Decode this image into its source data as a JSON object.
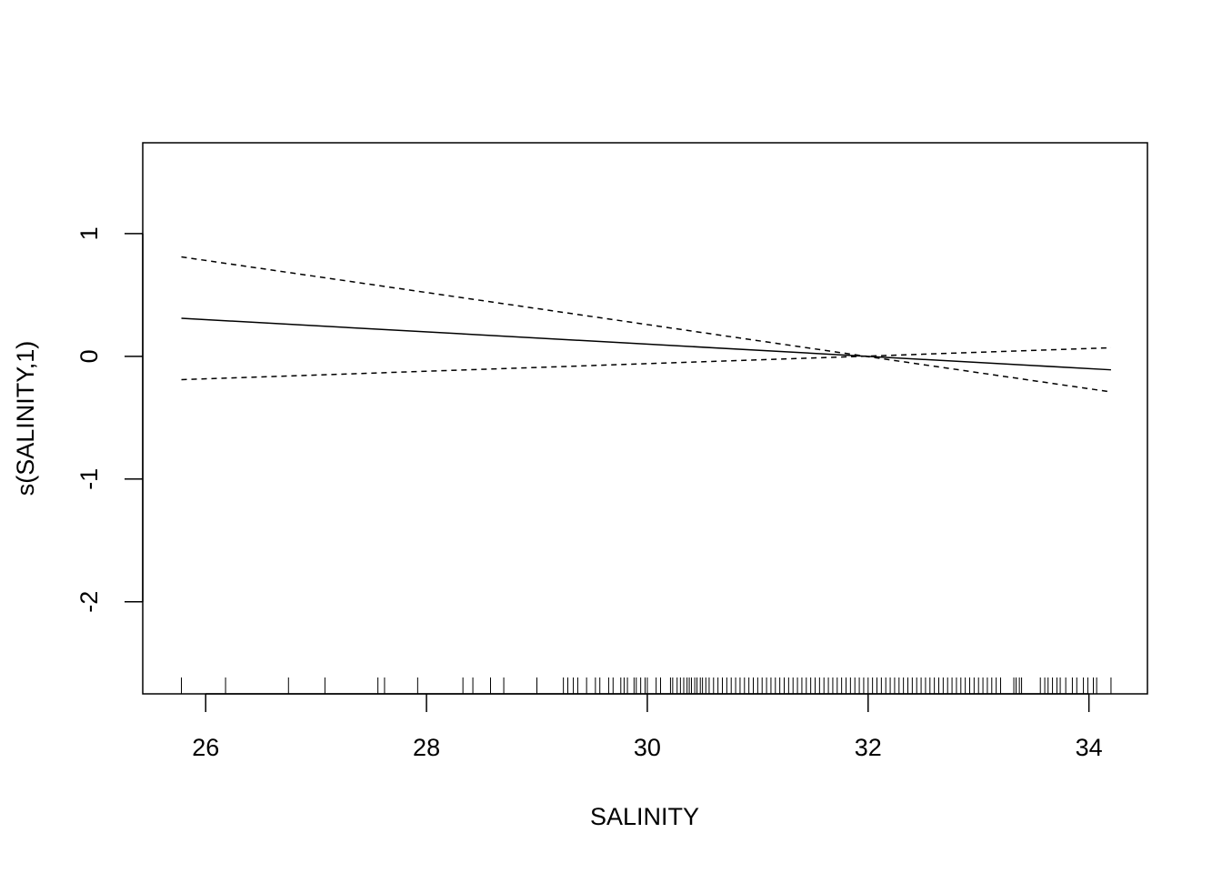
{
  "chart_data": {
    "type": "line",
    "x_label": "SALINITY",
    "y_label": "s(SALINITY,1)",
    "x": [
      25.78,
      34.2
    ],
    "series": [
      {
        "values": [
          0.31,
          -0.11
        ],
        "color": "#000000",
        "linestyle": "solid"
      },
      {
        "values": [
          0.81,
          -0.29
        ],
        "color": "#000000",
        "linestyle": "dashed"
      },
      {
        "values": [
          -0.19,
          0.07
        ],
        "color": "#000000",
        "linestyle": "dashed"
      }
    ],
    "rug": [
      25.78,
      26.18,
      26.75,
      27.08,
      27.56,
      27.62,
      27.92,
      28.33,
      28.42,
      28.58,
      28.7,
      29.0,
      29.24,
      29.28,
      29.33,
      29.37,
      29.45,
      29.53,
      29.57,
      29.65,
      29.69,
      29.76,
      29.79,
      29.82,
      29.88,
      29.9,
      29.94,
      29.98,
      30.0,
      30.08,
      30.12,
      30.21,
      30.23,
      30.27,
      30.3,
      30.33,
      30.36,
      30.38,
      30.4,
      30.43,
      30.45,
      30.48,
      30.5,
      30.53,
      30.56,
      30.6,
      30.64,
      30.68,
      30.72,
      30.76,
      30.8,
      30.84,
      30.88,
      30.92,
      30.96,
      31.0,
      31.04,
      31.08,
      31.12,
      31.16,
      31.2,
      31.24,
      31.28,
      31.32,
      31.36,
      31.4,
      31.44,
      31.48,
      31.52,
      31.56,
      31.6,
      31.64,
      31.68,
      31.72,
      31.76,
      31.8,
      31.84,
      31.88,
      31.92,
      31.96,
      32.0,
      32.04,
      32.08,
      32.12,
      32.16,
      32.2,
      32.24,
      32.28,
      32.32,
      32.36,
      32.4,
      32.44,
      32.48,
      32.52,
      32.56,
      32.6,
      32.64,
      32.68,
      32.72,
      32.76,
      32.8,
      32.84,
      32.88,
      32.92,
      32.96,
      33.0,
      33.04,
      33.08,
      33.12,
      33.16,
      33.2,
      33.32,
      33.34,
      33.37,
      33.39,
      33.56,
      33.6,
      33.63,
      33.67,
      33.71,
      33.74,
      33.79,
      33.85,
      33.89,
      33.95,
      33.99,
      34.04,
      34.07,
      34.2
    ],
    "xlim": [
      25.43,
      34.53
    ],
    "ylim": [
      -2.75,
      1.74
    ],
    "xticks": [
      26,
      28,
      30,
      32,
      34
    ],
    "yticks": [
      -2,
      -1,
      0,
      1
    ],
    "grid": false
  }
}
